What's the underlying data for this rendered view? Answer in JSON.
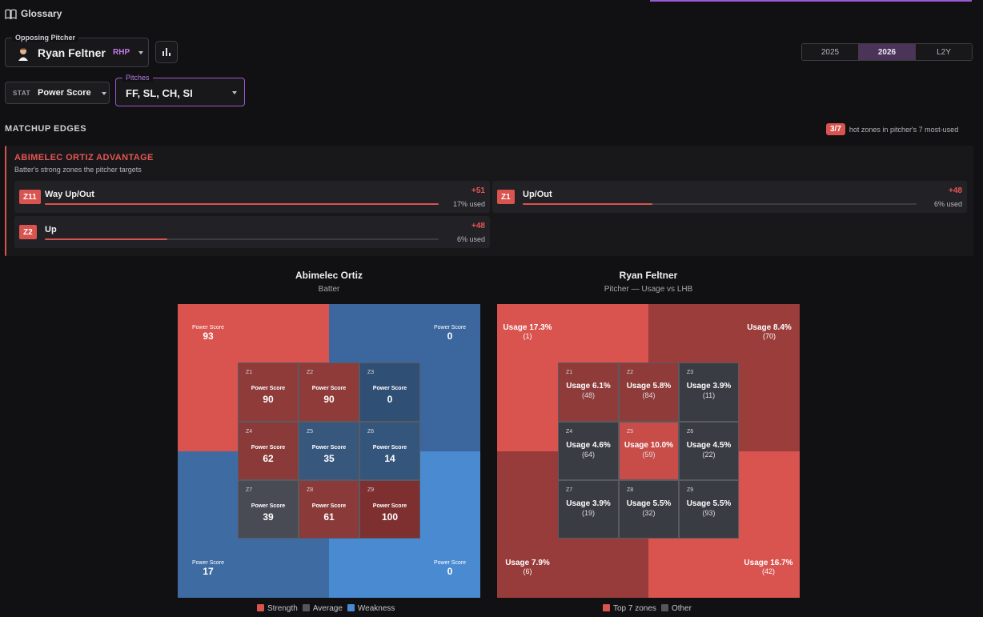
{
  "glossary_label": "Glossary",
  "pitcher_select": {
    "legend": "Opposing Pitcher",
    "name": "Ryan Feltner",
    "hand": "RHP"
  },
  "year_tabs": [
    "2025",
    "2026",
    "L2Y"
  ],
  "active_year": "2026",
  "stat_select": {
    "key": "STAT",
    "value": "Power Score"
  },
  "pitches_select": {
    "legend": "Pitches",
    "value": "FF, SL, CH, SI"
  },
  "matchup": {
    "title": "MATCHUP EDGES",
    "hot_badge": "3/7",
    "hot_text": "hot zones in pitcher's 7 most-used",
    "advantage_title": "ABIMELEC ORTIZ ADVANTAGE",
    "advantage_sub": "Batter's strong zones the pitcher targets",
    "edges": [
      {
        "zone": "Z11",
        "label": "Way Up/Out",
        "delta": "+51",
        "used": "17% used",
        "used_pct": 100
      },
      {
        "zone": "Z1",
        "label": "Up/Out",
        "delta": "+48",
        "used": "6% used",
        "used_pct": 33
      },
      {
        "zone": "Z2",
        "label": "Up",
        "delta": "+48",
        "used": "6% used",
        "used_pct": 31
      }
    ]
  },
  "colors": {
    "strength": "#d9534f",
    "average": "#4f5057",
    "weakness": "#4a8ad0",
    "accent": "#9b59d0"
  },
  "batter_panel": {
    "title": "Abimelec Ortiz",
    "subtitle": "Batter",
    "corner_label": "Power Score",
    "corners": {
      "tl": "93",
      "tr": "0",
      "bl": "17",
      "br": "0"
    },
    "zones": [
      {
        "id": "Z1",
        "label": "Power Score",
        "value": "90"
      },
      {
        "id": "Z2",
        "label": "Power Score",
        "value": "90"
      },
      {
        "id": "Z3",
        "label": "Power Score",
        "value": "0"
      },
      {
        "id": "Z4",
        "label": "Power Score",
        "value": "62"
      },
      {
        "id": "Z5",
        "label": "Power Score",
        "value": "35"
      },
      {
        "id": "Z6",
        "label": "Power Score",
        "value": "14"
      },
      {
        "id": "Z7",
        "label": "Power Score",
        "value": "39"
      },
      {
        "id": "Z8",
        "label": "Power Score",
        "value": "61"
      },
      {
        "id": "Z9",
        "label": "Power Score",
        "value": "100"
      }
    ],
    "legend": [
      "Strength",
      "Average",
      "Weakness"
    ]
  },
  "pitcher_panel": {
    "title": "Ryan Feltner",
    "subtitle": "Pitcher — Usage vs LHB",
    "corners": {
      "tl": {
        "usage": "Usage 17.3%",
        "count": "(1)"
      },
      "tr": {
        "usage": "Usage 8.4%",
        "count": "(70)"
      },
      "bl": {
        "usage": "Usage 7.9%",
        "count": "(6)"
      },
      "br": {
        "usage": "Usage 16.7%",
        "count": "(42)"
      }
    },
    "zones": [
      {
        "id": "Z1",
        "usage": "Usage 6.1%",
        "count": "(48)"
      },
      {
        "id": "Z2",
        "usage": "Usage 5.8%",
        "count": "(84)"
      },
      {
        "id": "Z3",
        "usage": "Usage 3.9%",
        "count": "(11)"
      },
      {
        "id": "Z4",
        "usage": "Usage 4.6%",
        "count": "(64)"
      },
      {
        "id": "Z5",
        "usage": "Usage 10.0%",
        "count": "(59)"
      },
      {
        "id": "Z6",
        "usage": "Usage 4.5%",
        "count": "(22)"
      },
      {
        "id": "Z7",
        "usage": "Usage 3.9%",
        "count": "(19)"
      },
      {
        "id": "Z8",
        "usage": "Usage 5.5%",
        "count": "(32)"
      },
      {
        "id": "Z9",
        "usage": "Usage 5.5%",
        "count": "(93)"
      }
    ],
    "legend": [
      "Top 7 zones",
      "Other"
    ]
  }
}
